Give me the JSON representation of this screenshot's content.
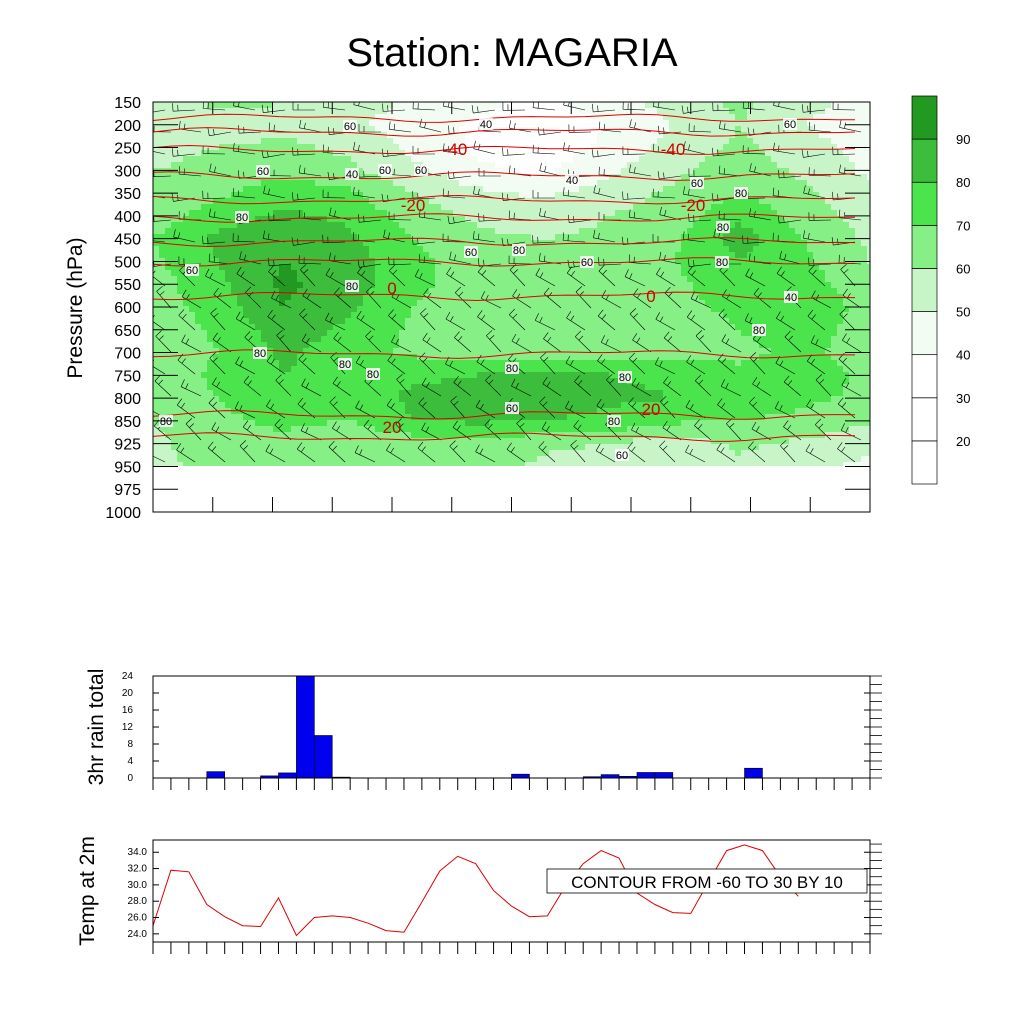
{
  "title": "Station: MAGARIA",
  "colors": {
    "levels": [
      "#ffffff",
      "#ffffff",
      "#ffffff",
      "#f2fcf2",
      "#c8f5c8",
      "#86ef86",
      "#4ce44c",
      "#3cbe3c",
      "#229a22"
    ],
    "temp_line": "#e00000",
    "rain_bar": "#0000ee"
  },
  "chart_data": [
    {
      "type": "heatmap",
      "description_kind": "time-height cross section",
      "ylabel": "Pressure (hPa)",
      "y_ticks": [
        "150",
        "200",
        "250",
        "300",
        "350",
        "400",
        "450",
        "500",
        "550",
        "600",
        "650",
        "700",
        "750",
        "800",
        "850",
        "925",
        "950",
        "975",
        "1000"
      ],
      "colorbar_labels": [
        "20",
        "30",
        "40",
        "50",
        "60",
        "70",
        "80",
        "90"
      ],
      "fill_levels": [
        20,
        30,
        40,
        50,
        60,
        70,
        80,
        90
      ],
      "n_times": 12,
      "humidity_grid": [
        [
          55,
          62,
          60,
          55,
          48,
          42,
          38,
          45,
          55,
          62,
          55,
          45
        ],
        [
          50,
          55,
          58,
          52,
          45,
          38,
          35,
          40,
          50,
          60,
          50,
          40
        ],
        [
          55,
          60,
          62,
          58,
          48,
          38,
          35,
          42,
          55,
          62,
          55,
          45
        ],
        [
          60,
          65,
          68,
          62,
          52,
          42,
          38,
          48,
          58,
          65,
          58,
          48
        ],
        [
          62,
          68,
          75,
          72,
          60,
          52,
          48,
          55,
          62,
          70,
          62,
          52
        ],
        [
          65,
          75,
          82,
          78,
          65,
          58,
          55,
          60,
          65,
          78,
          65,
          55
        ],
        [
          70,
          82,
          88,
          82,
          70,
          62,
          60,
          62,
          68,
          85,
          70,
          58
        ],
        [
          68,
          80,
          90,
          85,
          72,
          65,
          62,
          65,
          70,
          80,
          72,
          60
        ],
        [
          65,
          78,
          92,
          85,
          72,
          66,
          64,
          66,
          68,
          75,
          75,
          62
        ],
        [
          65,
          75,
          90,
          82,
          70,
          65,
          62,
          65,
          68,
          72,
          80,
          65
        ],
        [
          62,
          72,
          85,
          78,
          68,
          62,
          60,
          62,
          65,
          70,
          75,
          65
        ],
        [
          62,
          70,
          82,
          75,
          68,
          65,
          65,
          65,
          65,
          68,
          72,
          65
        ],
        [
          65,
          72,
          80,
          75,
          78,
          80,
          82,
          80,
          78,
          72,
          75,
          68
        ],
        [
          62,
          70,
          78,
          75,
          82,
          85,
          84,
          82,
          80,
          75,
          72,
          68
        ],
        [
          60,
          68,
          72,
          70,
          80,
          82,
          80,
          78,
          72,
          70,
          68,
          62
        ],
        [
          58,
          65,
          68,
          62,
          65,
          68,
          62,
          60,
          55,
          62,
          58,
          52
        ],
        [
          58,
          62,
          65,
          60,
          62,
          65,
          58,
          55,
          50,
          58,
          52,
          48
        ]
      ],
      "temp_contours": [
        {
          "label": "-40",
          "pressure": 250
        },
        {
          "label": "-20",
          "pressure": 375
        },
        {
          "label": "0",
          "pressure": 575
        },
        {
          "label": "20",
          "pressure": 860
        }
      ],
      "humidity_labels": [
        "60",
        "40",
        "60",
        "60",
        "40",
        "60",
        "60",
        "40",
        "80",
        "60",
        "80",
        "60",
        "80",
        "60",
        "60",
        "80",
        "80",
        "40",
        "80",
        "80",
        "80",
        "80",
        "80",
        "60",
        "80",
        "80",
        "80",
        "80",
        "60"
      ]
    },
    {
      "type": "bar",
      "ylabel": "3hr rain total",
      "yticks": [
        "0",
        "4",
        "8",
        "12",
        "16",
        "20",
        "24"
      ],
      "ylim": [
        0,
        24
      ],
      "values": [
        0,
        0,
        0,
        1.5,
        0,
        0,
        0.5,
        1.2,
        24.5,
        10,
        0.2,
        0,
        0,
        0,
        0,
        0,
        0,
        0,
        0,
        0,
        0.9,
        0,
        0,
        0,
        0.3,
        0.8,
        0.4,
        1.3,
        1.3,
        0,
        0,
        0,
        0,
        2.3,
        0,
        0,
        0,
        0,
        0,
        0
      ]
    },
    {
      "type": "line",
      "ylabel": "Temp at 2m",
      "yticks": [
        "24.0",
        "26.0",
        "28.0",
        "30.0",
        "32.0",
        "34.0"
      ],
      "ylim": [
        23.0,
        35.5
      ],
      "values": [
        25.0,
        31.8,
        31.6,
        27.6,
        26.1,
        25.0,
        24.9,
        28.4,
        23.8,
        26.0,
        26.2,
        26.0,
        25.3,
        24.4,
        24.2,
        27.9,
        31.7,
        33.5,
        32.6,
        29.3,
        27.4,
        26.1,
        26.2,
        29.8,
        32.6,
        34.2,
        33.3,
        29.0,
        27.6,
        26.6,
        26.5,
        30.4,
        34.2,
        34.9,
        34.2,
        31.0,
        28.6
      ],
      "annotation": "CONTOUR FROM -60 TO 30 BY 10"
    }
  ]
}
